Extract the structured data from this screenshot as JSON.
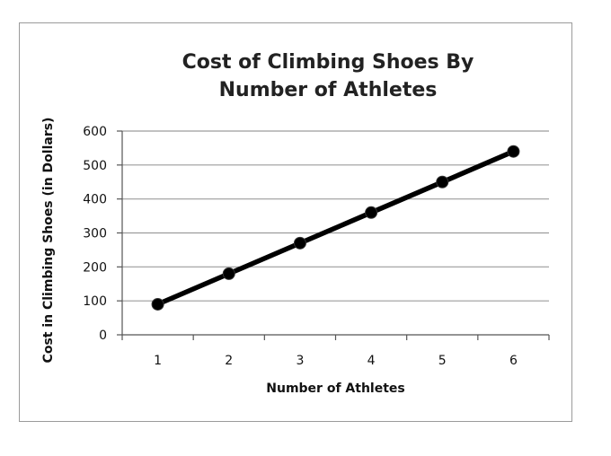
{
  "chart_data": {
    "type": "line",
    "title_lines": [
      "Cost of Climbing Shoes By",
      "Number of Athletes"
    ],
    "xlabel": "Number of Athletes",
    "ylabel": "Cost in Climbing Shoes (in Dollars)",
    "x": [
      1,
      2,
      3,
      4,
      5,
      6
    ],
    "series": [
      {
        "values": [
          90,
          180,
          270,
          360,
          450,
          540
        ]
      }
    ],
    "ylim": [
      0,
      600
    ],
    "yticks": [
      0,
      100,
      200,
      300,
      400,
      500,
      600
    ],
    "xtick_labels": [
      "1",
      "2",
      "3",
      "4",
      "5",
      "6"
    ],
    "grid": "horizontal",
    "legend": "none",
    "line_color": "#000000"
  }
}
